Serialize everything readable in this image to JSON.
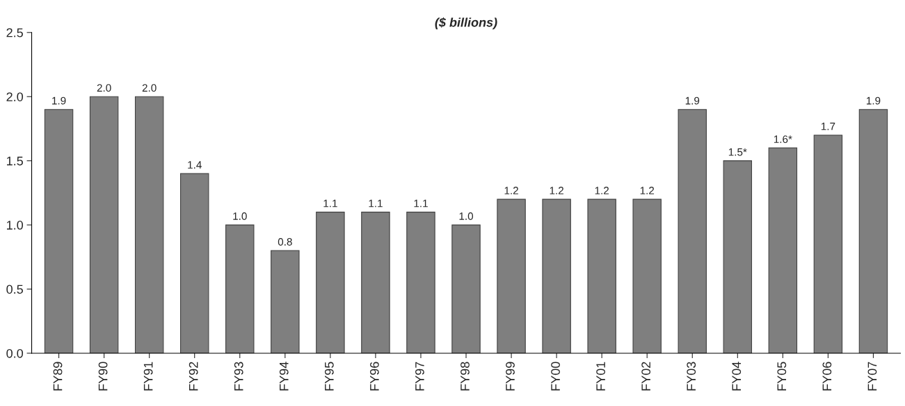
{
  "chart_data": {
    "type": "bar",
    "title": "($ billions)",
    "categories": [
      "FY89",
      "FY90",
      "FY91",
      "FY92",
      "FY93",
      "FY94",
      "FY95",
      "FY96",
      "FY97",
      "FY98",
      "FY99",
      "FY00",
      "FY01",
      "FY02",
      "FY03",
      "FY04",
      "FY05",
      "FY06",
      "FY07"
    ],
    "values": [
      1.9,
      2.0,
      2.0,
      1.4,
      1.0,
      0.8,
      1.1,
      1.1,
      1.1,
      1.0,
      1.2,
      1.2,
      1.2,
      1.2,
      1.9,
      1.5,
      1.6,
      1.7,
      1.9
    ],
    "value_labels": [
      "1.9",
      "2.0",
      "2.0",
      "1.4",
      "1.0",
      "0.8",
      "1.1",
      "1.1",
      "1.1",
      "1.0",
      "1.2",
      "1.2",
      "1.2",
      "1.2",
      "1.9",
      "1.5*",
      "1.6*",
      "1.7",
      "1.9"
    ],
    "color": "#7f7f7f",
    "ylim": [
      0,
      2.5
    ],
    "yticks": [
      {
        "value": 0,
        "label": "0.0"
      },
      {
        "value": 0.5,
        "label": "0.5"
      },
      {
        "value": 1,
        "label": "1.0"
      },
      {
        "value": 1.5,
        "label": "1.5"
      },
      {
        "value": 2,
        "label": "2.0"
      },
      {
        "value": 2.5,
        "label": "2.5"
      }
    ],
    "grid": false,
    "legend": false
  }
}
